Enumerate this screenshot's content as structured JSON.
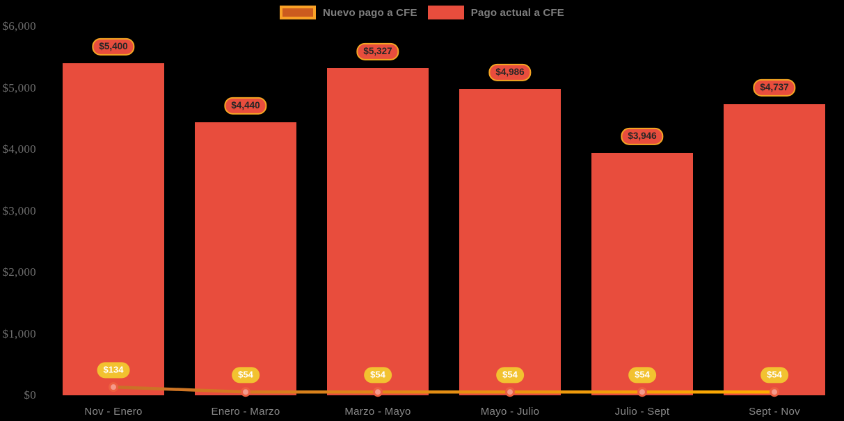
{
  "chart_data": {
    "type": "bar",
    "subtype": "bar-with-line-overlay",
    "categories": [
      "Nov - Enero",
      "Enero - Marzo",
      "Marzo - Mayo",
      "Mayo - Julio",
      "Julio - Sept",
      "Sept - Nov"
    ],
    "series": [
      {
        "name": "Nuevo pago a CFE",
        "type": "line",
        "values": [
          134,
          54,
          54,
          54,
          54,
          54
        ],
        "labels": [
          "$134",
          "$54",
          "$54",
          "$54",
          "$54",
          "$54"
        ]
      },
      {
        "name": "Pago actual a CFE",
        "type": "bar",
        "values": [
          5400,
          4440,
          5327,
          4986,
          3946,
          4737
        ],
        "labels": [
          "$5,400",
          "$4,440",
          "$5,327",
          "$4,986",
          "$3,946",
          "$4,737"
        ]
      }
    ],
    "title": "",
    "xlabel": "",
    "ylabel": "",
    "ylim": [
      0,
      6000
    ],
    "ytick_labels": [
      "$0",
      "$1,000",
      "$2,000",
      "$3,000",
      "$4,000",
      "$5,000",
      "$6,000"
    ],
    "grid": false,
    "legend_position": "top-center"
  },
  "legend": {
    "items": [
      {
        "label": "Nuevo pago a CFE"
      },
      {
        "label": "Pago actual a CFE"
      }
    ]
  },
  "colors": {
    "background": "#000000",
    "bar_fill": "#E84D3D",
    "bar_label_bg": "#E84D3D",
    "bar_label_border": "#F5A623",
    "bar_label_text": "#262626",
    "line_gradient_start": "#C96F28",
    "line_gradient_end": "#FFAE00",
    "marker_fill": "#F59A8C",
    "marker_stroke": "#ED5F40",
    "line_label_bg": "#F2C230",
    "line_label_text": "#FFFFFF",
    "legend_nuevo_fill": "#CC5B1E",
    "legend_nuevo_border": "#F9A126",
    "legend_actual_fill": "#E84D3D",
    "legend_text": "#7F7F7F",
    "ytick_text": "#6E6E6E",
    "xtick_text": "#8A8A8A"
  }
}
